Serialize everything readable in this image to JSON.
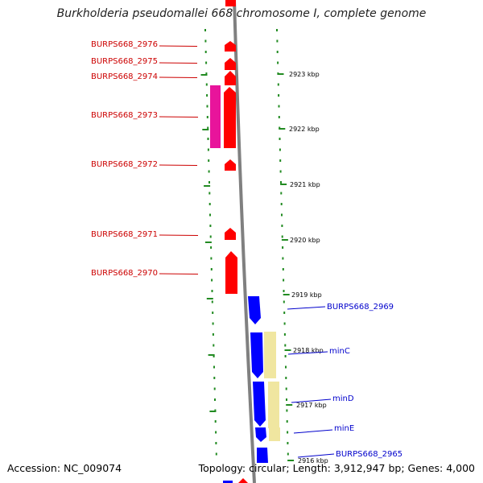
{
  "title": "Burkholderia pseudomallei 668 chromosome I, complete genome",
  "accession_label": "Accession: NC_009074",
  "summary_label": "Topology: circular; Length: 3,912,947 bp; Genes: 4,000",
  "colors": {
    "forward_gene": "#ff0000",
    "forward_gene_alt": "#e8149b",
    "reverse_gene": "#0000ff",
    "reverse_gene_alt": "#f0e6a0",
    "backbone": "#808080",
    "tick": "#228b22",
    "label_forward": "#cc0000",
    "label_reverse": "#0000cc"
  },
  "scale_labels": [
    "2923 kbp",
    "2922 kbp",
    "2921 kbp",
    "2920 kbp",
    "2919 kbp",
    "2918 kbp",
    "2917 kbp",
    "2916 kbp"
  ],
  "genes_forward": [
    {
      "label": "BURPS668_2976"
    },
    {
      "label": "BURPS668_2975"
    },
    {
      "label": "BURPS668_2974"
    },
    {
      "label": "BURPS668_2973"
    },
    {
      "label": "BURPS668_2972"
    },
    {
      "label": "BURPS668_2971"
    },
    {
      "label": "BURPS668_2970"
    }
  ],
  "genes_reverse": [
    {
      "label": "BURPS668_2969"
    },
    {
      "label": "minC"
    },
    {
      "label": "minD"
    },
    {
      "label": "minE"
    },
    {
      "label": "BURPS668_2965"
    }
  ]
}
